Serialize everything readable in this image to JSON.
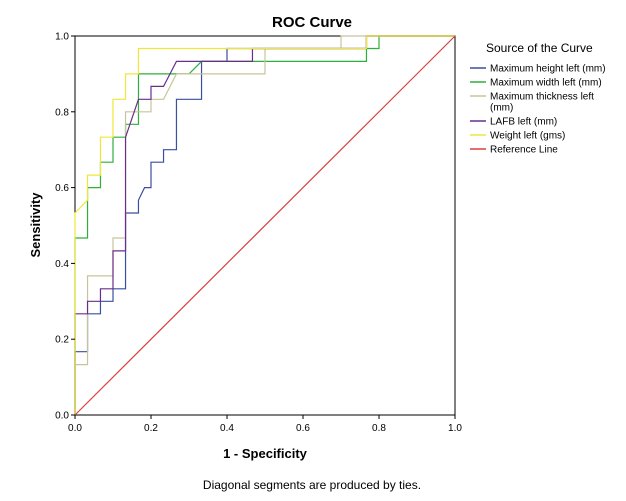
{
  "chart_data": {
    "type": "line",
    "title": "ROC Curve",
    "xlabel": "1 - Specificity",
    "ylabel": "Sensitivity",
    "xlim": [
      0.0,
      1.0
    ],
    "ylim": [
      0.0,
      1.0
    ],
    "x_ticks": [
      "0.0",
      "0.2",
      "0.4",
      "0.6",
      "0.8",
      "1.0"
    ],
    "y_ticks": [
      "0.0",
      "0.2",
      "0.4",
      "0.6",
      "0.8",
      "1.0"
    ],
    "grid": false,
    "legend_position": "right",
    "legend_title": "Source of the Curve",
    "footnote": "Diagonal segments are produced by ties.",
    "series": [
      {
        "name": "Maximum height left (mm)",
        "color": "#3a4fa0",
        "points": [
          [
            0,
            0
          ],
          [
            0,
            0.167
          ],
          [
            0.033,
            0.167
          ],
          [
            0.033,
            0.267
          ],
          [
            0.067,
            0.267
          ],
          [
            0.067,
            0.3
          ],
          [
            0.1,
            0.3
          ],
          [
            0.1,
            0.333
          ],
          [
            0.133,
            0.333
          ],
          [
            0.133,
            0.533
          ],
          [
            0.167,
            0.533
          ],
          [
            0.167,
            0.567
          ],
          [
            0.183,
            0.6
          ],
          [
            0.2,
            0.6
          ],
          [
            0.2,
            0.667
          ],
          [
            0.233,
            0.667
          ],
          [
            0.233,
            0.7
          ],
          [
            0.267,
            0.7
          ],
          [
            0.267,
            0.833
          ],
          [
            0.333,
            0.833
          ],
          [
            0.333,
            0.933
          ],
          [
            0.4,
            0.933
          ],
          [
            0.4,
            0.967
          ],
          [
            0.767,
            0.967
          ],
          [
            0.767,
            1.0
          ],
          [
            1.0,
            1.0
          ]
        ]
      },
      {
        "name": "Maximum width left (mm)",
        "color": "#2eaf3a",
        "points": [
          [
            0,
            0
          ],
          [
            0,
            0.467
          ],
          [
            0.033,
            0.467
          ],
          [
            0.033,
            0.6
          ],
          [
            0.067,
            0.6
          ],
          [
            0.067,
            0.667
          ],
          [
            0.1,
            0.667
          ],
          [
            0.1,
            0.733
          ],
          [
            0.133,
            0.733
          ],
          [
            0.133,
            0.767
          ],
          [
            0.167,
            0.767
          ],
          [
            0.167,
            0.9
          ],
          [
            0.3,
            0.9
          ],
          [
            0.333,
            0.933
          ],
          [
            0.767,
            0.933
          ],
          [
            0.767,
            0.967
          ],
          [
            0.8,
            0.967
          ],
          [
            0.8,
            1.0
          ],
          [
            1.0,
            1.0
          ]
        ]
      },
      {
        "name": "Maximum thickness left (mm)",
        "color": "#c8c49a",
        "points": [
          [
            0,
            0
          ],
          [
            0,
            0.133
          ],
          [
            0.033,
            0.133
          ],
          [
            0.033,
            0.367
          ],
          [
            0.1,
            0.367
          ],
          [
            0.1,
            0.467
          ],
          [
            0.133,
            0.467
          ],
          [
            0.133,
            0.8
          ],
          [
            0.2,
            0.8
          ],
          [
            0.2,
            0.833
          ],
          [
            0.233,
            0.833
          ],
          [
            0.267,
            0.9
          ],
          [
            0.5,
            0.9
          ],
          [
            0.5,
            0.967
          ],
          [
            0.7,
            0.967
          ],
          [
            0.7,
            1.0
          ],
          [
            1.0,
            1.0
          ]
        ]
      },
      {
        "name": "LAFB left (mm)",
        "color": "#6b2d8c",
        "points": [
          [
            0,
            0
          ],
          [
            0,
            0.267
          ],
          [
            0.033,
            0.267
          ],
          [
            0.033,
            0.3
          ],
          [
            0.067,
            0.3
          ],
          [
            0.067,
            0.333
          ],
          [
            0.1,
            0.333
          ],
          [
            0.1,
            0.433
          ],
          [
            0.133,
            0.433
          ],
          [
            0.133,
            0.733
          ],
          [
            0.167,
            0.833
          ],
          [
            0.2,
            0.833
          ],
          [
            0.2,
            0.867
          ],
          [
            0.233,
            0.867
          ],
          [
            0.267,
            0.933
          ],
          [
            0.467,
            0.933
          ],
          [
            0.467,
            0.967
          ],
          [
            0.767,
            0.967
          ],
          [
            0.767,
            1.0
          ],
          [
            1.0,
            1.0
          ]
        ]
      },
      {
        "name": "Weight left (gms)",
        "color": "#f0e63a",
        "points": [
          [
            0,
            0
          ],
          [
            0,
            0.533
          ],
          [
            0.033,
            0.567
          ],
          [
            0.033,
            0.633
          ],
          [
            0.067,
            0.633
          ],
          [
            0.067,
            0.733
          ],
          [
            0.1,
            0.733
          ],
          [
            0.1,
            0.833
          ],
          [
            0.133,
            0.833
          ],
          [
            0.133,
            0.9
          ],
          [
            0.167,
            0.9
          ],
          [
            0.167,
            0.967
          ],
          [
            0.767,
            0.967
          ],
          [
            0.767,
            1.0
          ],
          [
            1.0,
            1.0
          ]
        ]
      },
      {
        "name": "Reference Line",
        "color": "#d94040",
        "points": [
          [
            0,
            0
          ],
          [
            1,
            1
          ]
        ]
      }
    ]
  }
}
